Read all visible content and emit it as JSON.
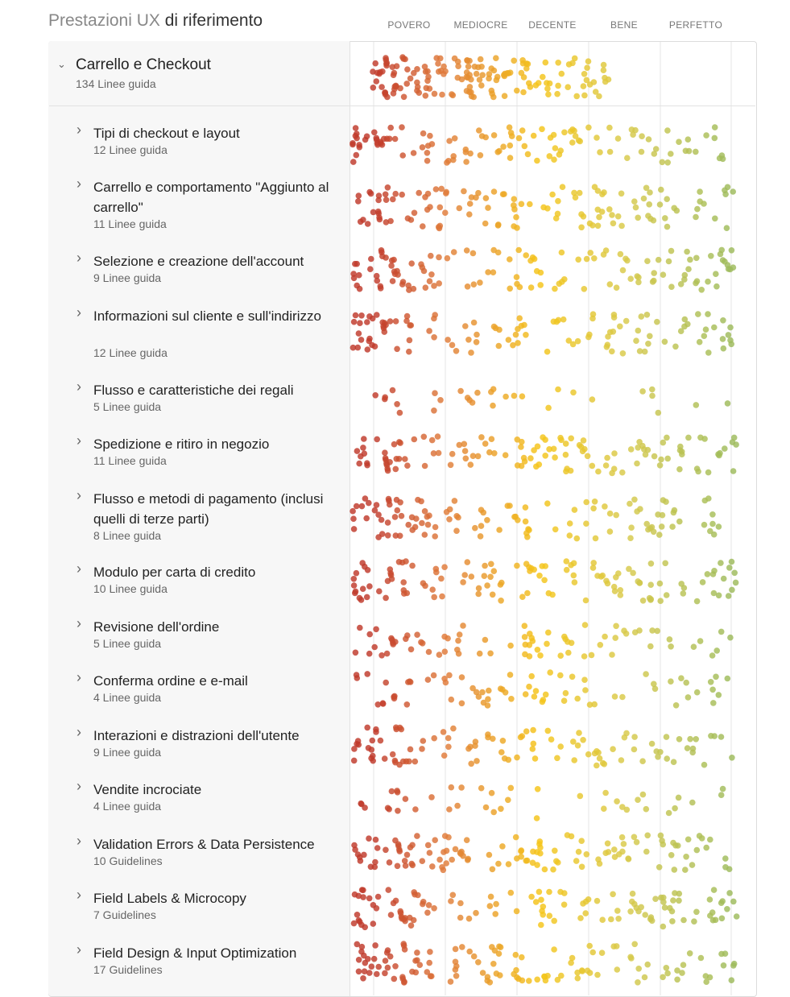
{
  "header": {
    "title_prefix": "Prestazioni UX",
    "title_bold": "di riferimento",
    "scale": [
      "POVERO",
      "MEDIOCRE",
      "DECENTE",
      "BENE",
      "PERFETTO"
    ]
  },
  "group": {
    "name": "Carrello e Checkout",
    "count": "134 Linee guida"
  },
  "categories": [
    {
      "name": "Tipi di checkout e layout",
      "count": "12 Linee guida"
    },
    {
      "name": "Carrello e comportamento \"Aggiunto al carrello\"",
      "count": "11 Linee guida"
    },
    {
      "name": "Selezione e creazione dell'account",
      "count": "9 Linee guida"
    },
    {
      "name": "Informazioni sul cliente e sull'indirizzo",
      "count": "12 Linee guida"
    },
    {
      "name": "Flusso e caratteristiche dei regali",
      "count": "5 Linee guida"
    },
    {
      "name": "Spedizione e ritiro in negozio",
      "count": "11 Linee guida"
    },
    {
      "name": "Flusso e metodi di pagamento (inclusi quelli di terze parti)",
      "count": "8 Linee guida"
    },
    {
      "name": "Modulo per carta di credito",
      "count": "10 Linee guida"
    },
    {
      "name": "Revisione dell'ordine",
      "count": "5 Linee guida"
    },
    {
      "name": "Conferma ordine e e-mail",
      "count": "4 Linee guida"
    },
    {
      "name": "Interazioni e distrazioni dell'utente",
      "count": "9 Linee guida"
    },
    {
      "name": "Vendite incrociate",
      "count": "4 Linee guida"
    },
    {
      "name": "Validation Errors & Data Persistence",
      "count": "10 Guidelines"
    },
    {
      "name": "Field Labels & Microcopy",
      "count": "7 Guidelines"
    },
    {
      "name": "Field Design & Input Optimization",
      "count": "17 Guidelines"
    }
  ],
  "colors": {
    "povero": "#c0392b",
    "mediocre": "#e07b39",
    "decente": "#f5c518",
    "bene": "#d7c94a",
    "perfetto": "#9dbb5b",
    "gridline": "#e4e4e4",
    "left_panel": "#f7f7f7"
  },
  "icons": {
    "collapse": "chevron-down-icon",
    "expand": "chevron-right-icon"
  }
}
